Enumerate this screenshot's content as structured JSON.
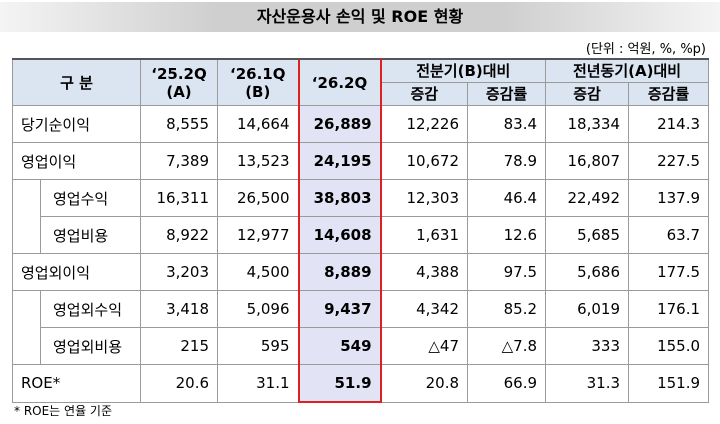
{
  "title": "자산운용사 손익 및 ROE 현황",
  "unit": "(단위 : 억원, %, %p)",
  "table": {
    "header": {
      "category": "구 분",
      "periods": [
        {
          "label": "‘25.2Q",
          "sub": "(A)"
        },
        {
          "label": "‘26.1Q",
          "sub": "(B)"
        },
        {
          "label": "‘26.2Q",
          "highlighted": true
        }
      ],
      "comparisons": [
        {
          "label": "전분기(B)대비",
          "columns": [
            "증감",
            "증감률"
          ]
        },
        {
          "label": "전년동기(A)대비",
          "columns": [
            "증감",
            "증감률"
          ]
        }
      ]
    },
    "rows": [
      {
        "label": "당기순이익",
        "level": 0,
        "values": [
          "8,555",
          "14,664",
          "26,889",
          "12,226",
          "83.4",
          "18,334",
          "214.3"
        ]
      },
      {
        "label": "영업이익",
        "level": 0,
        "values": [
          "7,389",
          "13,523",
          "24,195",
          "10,672",
          "78.9",
          "16,807",
          "227.5"
        ]
      },
      {
        "label": "영업수익",
        "level": 1,
        "values": [
          "16,311",
          "26,500",
          "38,803",
          "12,303",
          "46.4",
          "22,492",
          "137.9"
        ]
      },
      {
        "label": "영업비용",
        "level": 1,
        "values": [
          "8,922",
          "12,977",
          "14,608",
          "1,631",
          "12.6",
          "5,685",
          "63.7"
        ]
      },
      {
        "label": "영업외이익",
        "level": 0,
        "values": [
          "3,203",
          "4,500",
          "8,889",
          "4,388",
          "97.5",
          "5,686",
          "177.5"
        ]
      },
      {
        "label": "영업외수익",
        "level": 1,
        "values": [
          "3,418",
          "5,096",
          "9,437",
          "4,342",
          "85.2",
          "6,019",
          "176.1"
        ]
      },
      {
        "label": "영업외비용",
        "level": 1,
        "values": [
          "215",
          "595",
          "549",
          "△47",
          "△7.8",
          "333",
          "155.0"
        ]
      },
      {
        "label": "ROE*",
        "level": 0,
        "values": [
          "20.6",
          "31.1",
          "51.9",
          "20.8",
          "66.9",
          "31.3",
          "151.9"
        ]
      }
    ]
  },
  "footnote": "* ROE는 연율 기준"
}
